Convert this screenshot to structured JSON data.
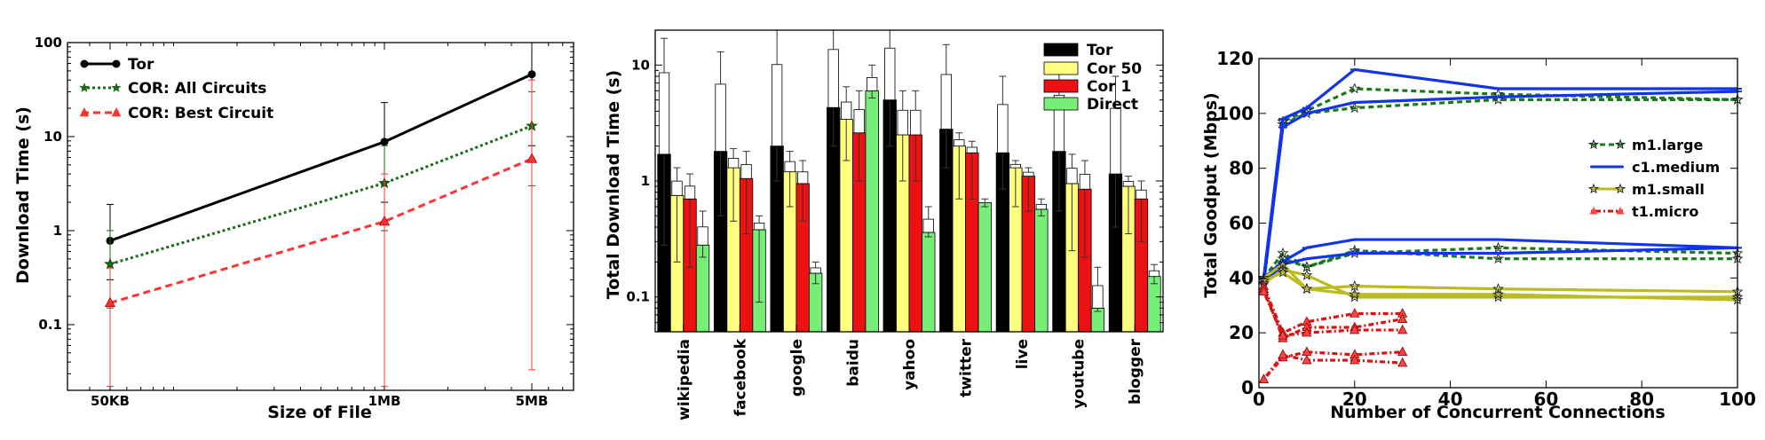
{
  "chart_data": [
    {
      "type": "line",
      "xlabel": "Size of File",
      "ylabel": "Download Time (s)",
      "yscale": "log",
      "ylim": [
        0.02,
        100
      ],
      "categories": [
        "50KB",
        "1MB",
        "5MB"
      ],
      "x_kb": [
        50,
        1000,
        5000
      ],
      "yticks": [
        "0.1",
        "1",
        "10",
        "100"
      ],
      "legend_position": "top-left",
      "series": [
        {
          "name": "Tor",
          "color": "#000000",
          "values": [
            0.78,
            8.8,
            46
          ],
          "err_lo": [
            0.3,
            2.0,
            8
          ],
          "err_hi": [
            1.9,
            23,
            100
          ]
        },
        {
          "name": "COR: All Circuits",
          "color": "#1a6b1a",
          "values": [
            0.44,
            3.2,
            13
          ],
          "err_lo": [
            0.15,
            1.0,
            3
          ],
          "err_hi": [
            1.0,
            8.0,
            30
          ]
        },
        {
          "name": "COR: Best Circuit",
          "color": "#ff3333",
          "values": [
            0.17,
            1.25,
            5.8
          ],
          "err_lo": [
            0.022,
            0.022,
            0.033
          ],
          "err_hi": [
            0.4,
            4.0,
            40
          ]
        }
      ]
    },
    {
      "type": "bar",
      "ylabel": "Total Download Time (s)",
      "yscale": "log",
      "ylim": [
        0.05,
        20
      ],
      "yticks": [
        "0.1",
        "1",
        "10"
      ],
      "legend_position": "top-right",
      "categories": [
        "wikipedia",
        "facebook",
        "google",
        "baidu",
        "yahoo",
        "twitter",
        "live",
        "youtube",
        "blogger"
      ],
      "series": [
        {
          "name": "Tor",
          "color": "#000000",
          "values": [
            1.7,
            1.8,
            2.0,
            4.3,
            5.0,
            2.8,
            1.75,
            1.8,
            1.15
          ],
          "err_lo": [
            0.28,
            0.5,
            1.0,
            2.0,
            2.0,
            1.3,
            0.85,
            0.55,
            0.4
          ],
          "err_hi": [
            17,
            13,
            20,
            25,
            25,
            15,
            8,
            10,
            8
          ]
        },
        {
          "name": "Cor 50",
          "color": "#ffff80",
          "values": [
            0.75,
            1.3,
            1.2,
            3.4,
            2.5,
            2.0,
            1.3,
            0.95,
            0.9
          ],
          "err_lo": [
            0.2,
            0.45,
            0.6,
            1.5,
            1.0,
            0.7,
            0.6,
            0.25,
            0.35
          ],
          "err_hi": [
            1.3,
            1.9,
            1.8,
            6.5,
            6.0,
            2.6,
            1.5,
            1.7,
            1.1
          ]
        },
        {
          "name": "Cor 1",
          "color": "#ee1111",
          "values": [
            0.7,
            1.05,
            0.95,
            2.6,
            2.5,
            1.75,
            1.1,
            0.85,
            0.7
          ],
          "err_lo": [
            0.18,
            0.35,
            0.45,
            1.0,
            1.0,
            0.7,
            0.55,
            0.22,
            0.3
          ],
          "err_hi": [
            1.15,
            1.8,
            1.5,
            6.0,
            6.0,
            2.2,
            1.3,
            1.5,
            1.0
          ]
        },
        {
          "name": "Direct",
          "color": "#77ee77",
          "values": [
            0.28,
            0.38,
            0.16,
            6.0,
            0.36,
            0.65,
            0.57,
            0.08,
            0.15
          ],
          "err_lo": [
            0.22,
            0.09,
            0.13,
            5.2,
            0.33,
            0.6,
            0.5,
            0.075,
            0.13
          ],
          "err_hi": [
            0.55,
            0.5,
            0.2,
            10,
            0.6,
            0.7,
            0.7,
            0.18,
            0.19
          ]
        }
      ]
    },
    {
      "type": "line",
      "xlabel": "Number of Concurrent Connections",
      "ylabel": "Total Goodput (Mbps)",
      "xlim": [
        0,
        100
      ],
      "ylim": [
        0,
        120
      ],
      "xticks": [
        0,
        20,
        40,
        60,
        80,
        100
      ],
      "yticks": [
        0,
        20,
        40,
        60,
        80,
        100,
        120
      ],
      "legend_position": "center-right",
      "series": [
        {
          "name": "m1.large",
          "color": "#1a7a1a",
          "x": [
            1,
            5,
            10,
            20,
            50,
            100
          ],
          "lines": [
            [
              40,
              97,
              101,
              109,
              107,
              105
            ],
            [
              38,
              96,
              100,
              102,
              105,
              105
            ],
            [
              40,
              49,
              44,
              49,
              51,
              49
            ],
            [
              38,
              47,
              44,
              50,
              47,
              47
            ]
          ]
        },
        {
          "name": "c1.medium",
          "color": "#1133ee",
          "x": [
            1,
            5,
            10,
            20,
            50,
            100
          ],
          "lines": [
            [
              40,
              98,
              102,
              116,
              109,
              109
            ],
            [
              38,
              95,
              100,
              104,
              106,
              108
            ],
            [
              40,
              46,
              51,
              54,
              54,
              51
            ],
            [
              38,
              45,
              47,
              49,
              49,
              51
            ]
          ]
        },
        {
          "name": "m1.small",
          "color": "#bbbb22",
          "x": [
            1,
            5,
            10,
            20,
            50,
            100
          ],
          "lines": [
            [
              40,
              45,
              36,
              37,
              36,
              35
            ],
            [
              38,
              43,
              41,
              33,
              33,
              33
            ],
            [
              39,
              42,
              36,
              34,
              34,
              32
            ]
          ]
        },
        {
          "name": "t1.micro",
          "color": "#dd1111",
          "x": [
            1,
            5,
            10,
            20,
            30
          ],
          "lines": [
            [
              37,
              20,
              24,
              27,
              27
            ],
            [
              36,
              18,
              22,
              22,
              25
            ],
            [
              35,
              19,
              20,
              21,
              21
            ],
            [
              3,
              11,
              13,
              12,
              13
            ],
            [
              3,
              12,
              10,
              10,
              9
            ]
          ]
        }
      ]
    }
  ]
}
